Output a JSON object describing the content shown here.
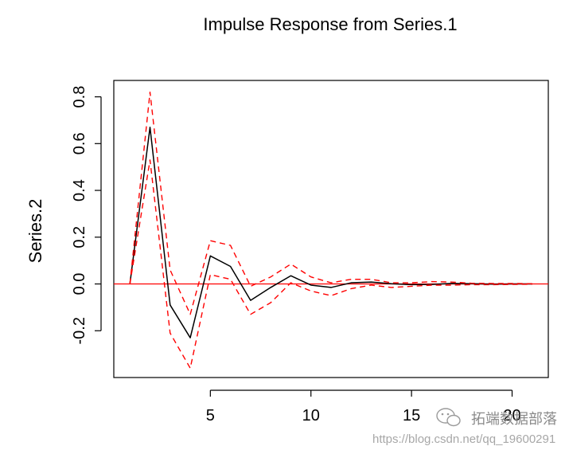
{
  "chart_data": {
    "type": "line",
    "title": "Impulse Response from Series.1",
    "ylabel": "Series.2",
    "xlabel": "",
    "xlim": [
      0.2,
      21.8
    ],
    "ylim": [
      -0.4,
      0.87
    ],
    "x_ticks": [
      5,
      10,
      15,
      20
    ],
    "y_ticks": [
      -0.2,
      0.0,
      0.2,
      0.4,
      0.6,
      0.8
    ],
    "y_tick_labels": [
      "-0.2",
      "0.0",
      "0.2",
      "0.4",
      "0.6",
      "0.8"
    ],
    "x_tick_labels": [
      "5",
      "10",
      "15",
      "20"
    ],
    "x": [
      1,
      2,
      3,
      4,
      5,
      6,
      7,
      8,
      9,
      10,
      11,
      12,
      13,
      14,
      15,
      16,
      17,
      18,
      19,
      20,
      21
    ],
    "grid": false,
    "reference_line": {
      "y": 0,
      "color": "#ff0000"
    },
    "series": [
      {
        "values": [
          0,
          0.67,
          -0.09,
          -0.23,
          0.12,
          0.075,
          -0.07,
          -0.015,
          0.035,
          -0.005,
          -0.015,
          0.005,
          0.008,
          0.001,
          -0.003,
          -0.002,
          0.002,
          0.001,
          -0.001,
          0.0,
          0.0
        ],
        "color": "#000000",
        "style": "solid"
      },
      {
        "values": [
          0,
          0.82,
          0.06,
          -0.13,
          0.185,
          0.165,
          -0.01,
          0.03,
          0.085,
          0.03,
          0.005,
          0.02,
          0.02,
          0.005,
          0.005,
          0.01,
          0.008,
          0.003,
          0.002,
          0.002,
          0.001
        ],
        "color": "#ff0000",
        "style": "dashed"
      },
      {
        "values": [
          0,
          0.53,
          -0.21,
          -0.36,
          0.04,
          0.02,
          -0.13,
          -0.08,
          0.005,
          -0.03,
          -0.05,
          -0.02,
          -0.005,
          -0.015,
          -0.01,
          -0.005,
          -0.005,
          -0.003,
          -0.003,
          -0.002,
          -0.001
        ],
        "color": "#ff0000",
        "style": "dashed"
      }
    ]
  },
  "watermark": {
    "brand_text": "拓端数据部落",
    "url_text": "https://blog.csdn.net/qq_19600291",
    "icon": "wechat-icon"
  }
}
